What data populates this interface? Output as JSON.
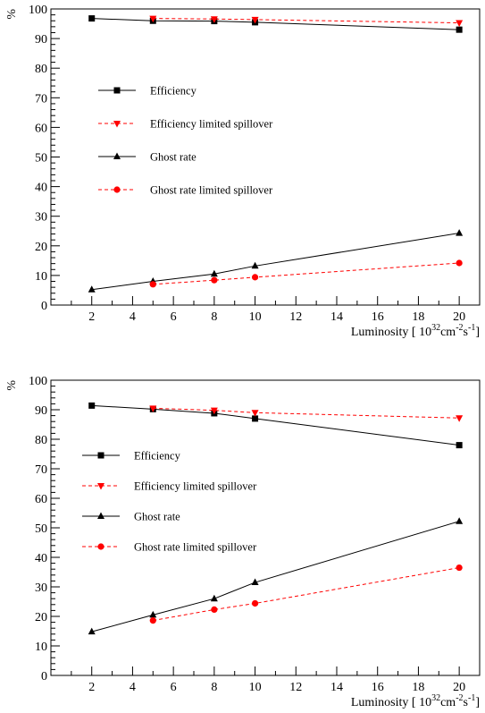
{
  "chart_data": [
    {
      "type": "line",
      "ylabel": "%",
      "xlabel_main": "Luminosity [ 10",
      "xlabel_sup1": "32",
      "xlabel_cm": "cm",
      "xlabel_sup2": "-2",
      "xlabel_s": "s",
      "xlabel_sup3": "-1",
      "xlabel_end": "]",
      "xlim": [
        0,
        21
      ],
      "ylim": [
        0,
        100
      ],
      "xticks": [
        2,
        4,
        6,
        8,
        10,
        12,
        14,
        16,
        18,
        20
      ],
      "yticks": [
        0,
        10,
        20,
        30,
        40,
        50,
        60,
        70,
        80,
        90,
        100
      ],
      "legend_position": "upper-left",
      "series": [
        {
          "name": "Efficiency",
          "color": "#000000",
          "dashed": false,
          "marker": "square",
          "x": [
            2,
            5,
            8,
            10,
            20
          ],
          "y": [
            96.8,
            96.0,
            95.9,
            95.5,
            93.0
          ]
        },
        {
          "name": "Efficiency limited spillover",
          "color": "#ff0000",
          "dashed": true,
          "marker": "triangle-down",
          "x": [
            5,
            8,
            10,
            20
          ],
          "y": [
            96.8,
            96.6,
            96.4,
            95.3
          ]
        },
        {
          "name": "Ghost rate",
          "color": "#000000",
          "dashed": false,
          "marker": "triangle-up",
          "x": [
            2,
            5,
            8,
            10,
            20
          ],
          "y": [
            5.2,
            8.0,
            10.5,
            13.2,
            24.3
          ]
        },
        {
          "name": "Ghost rate limited spillover",
          "color": "#ff0000",
          "dashed": true,
          "marker": "circle",
          "x": [
            5,
            8,
            10,
            20
          ],
          "y": [
            7.0,
            8.4,
            9.4,
            14.2
          ]
        }
      ]
    },
    {
      "type": "line",
      "ylabel": "%",
      "xlabel_main": "Luminosity [ 10",
      "xlabel_sup1": "32",
      "xlabel_cm": "cm",
      "xlabel_sup2": "-2",
      "xlabel_s": "s",
      "xlabel_sup3": "-1",
      "xlabel_end": "]",
      "xlim": [
        0,
        21
      ],
      "ylim": [
        0,
        100
      ],
      "xticks": [
        2,
        4,
        6,
        8,
        10,
        12,
        14,
        16,
        18,
        20
      ],
      "yticks": [
        0,
        10,
        20,
        30,
        40,
        50,
        60,
        70,
        80,
        90,
        100
      ],
      "legend_position": "left-middle",
      "series": [
        {
          "name": "Efficiency",
          "color": "#000000",
          "dashed": false,
          "marker": "square",
          "x": [
            2,
            5,
            8,
            10,
            20
          ],
          "y": [
            91.4,
            90.2,
            88.8,
            87.0,
            78.0
          ]
        },
        {
          "name": "Efficiency limited spillover",
          "color": "#ff0000",
          "dashed": true,
          "marker": "triangle-down",
          "x": [
            5,
            8,
            10,
            20
          ],
          "y": [
            90.5,
            89.8,
            89.0,
            87.2
          ]
        },
        {
          "name": "Ghost rate",
          "color": "#000000",
          "dashed": false,
          "marker": "triangle-up",
          "x": [
            2,
            5,
            8,
            10,
            20
          ],
          "y": [
            14.8,
            20.5,
            26.0,
            31.5,
            52.2
          ]
        },
        {
          "name": "Ghost rate limited spillover",
          "color": "#ff0000",
          "dashed": true,
          "marker": "circle",
          "x": [
            5,
            8,
            10,
            20
          ],
          "y": [
            18.6,
            22.3,
            24.4,
            36.5
          ]
        }
      ]
    }
  ]
}
